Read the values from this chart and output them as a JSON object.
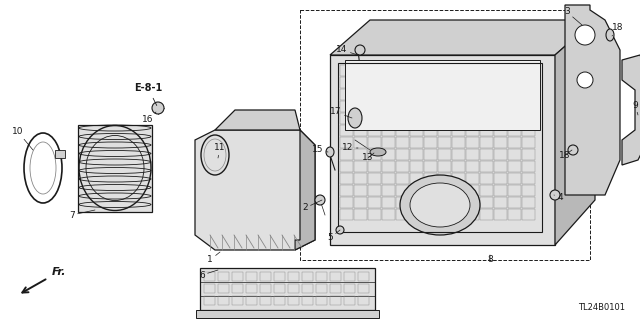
{
  "bg_color": "#ffffff",
  "diagram_code": "TL24B0101",
  "dark": "#1a1a1a",
  "gray": "#888888",
  "lightgray": "#cccccc",
  "midgray": "#aaaaaa",
  "fillgray": "#e0e0e0",
  "fillmid": "#d0d0d0",
  "filldark": "#b8b8b8"
}
